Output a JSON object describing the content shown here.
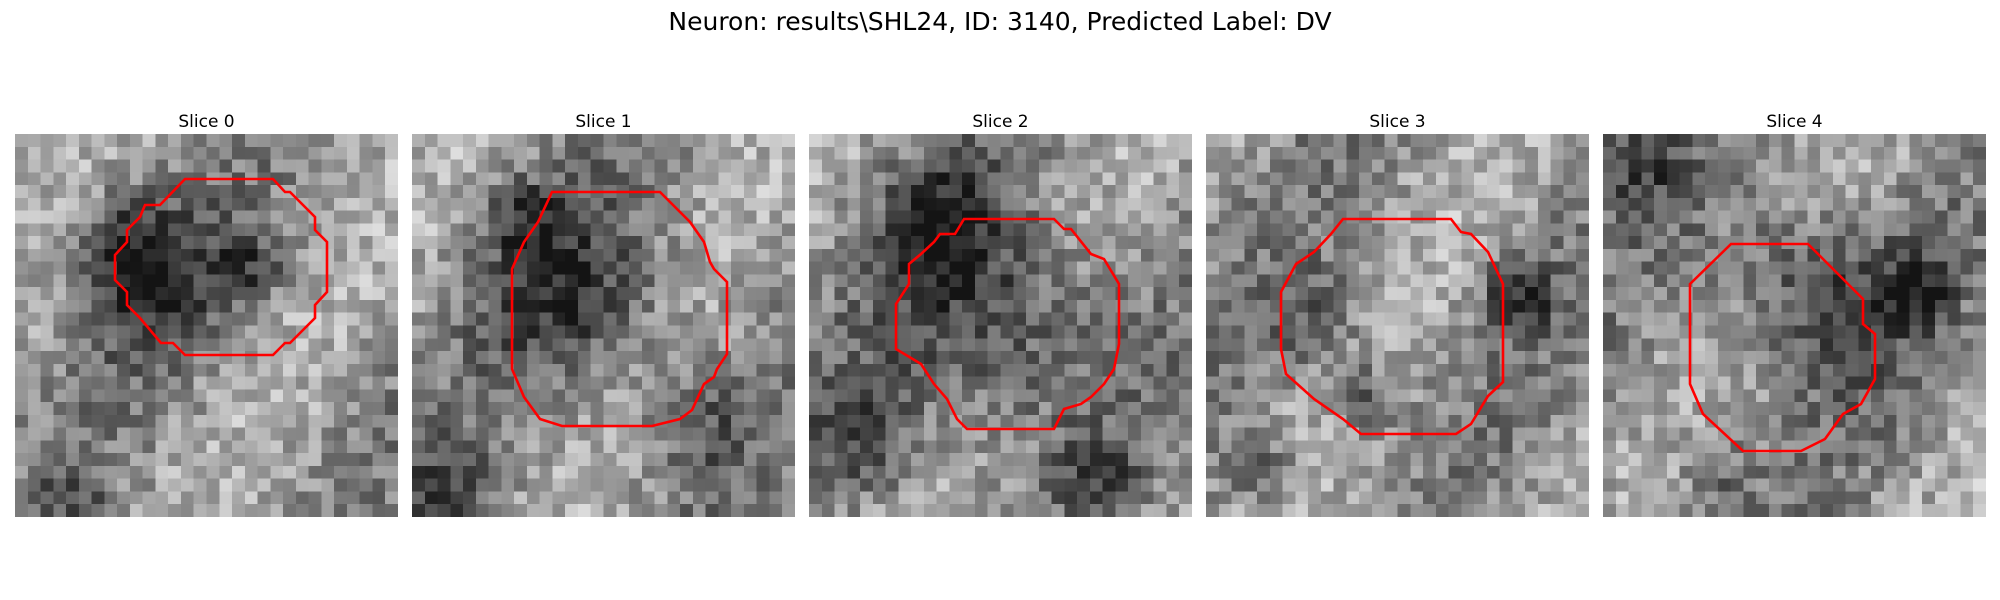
{
  "figure": {
    "title": "Neuron: results\\SHL24, ID: 3140, Predicted Label: DV"
  },
  "panels": [
    {
      "title": "Slice 0",
      "contour_color": "#ff0000"
    },
    {
      "title": "Slice 1",
      "contour_color": "#ff0000"
    },
    {
      "title": "Slice 2",
      "contour_color": "#ff0000"
    },
    {
      "title": "Slice 3",
      "contour_color": "#ff0000"
    },
    {
      "title": "Slice 4",
      "contour_color": "#ff0000"
    }
  ]
}
